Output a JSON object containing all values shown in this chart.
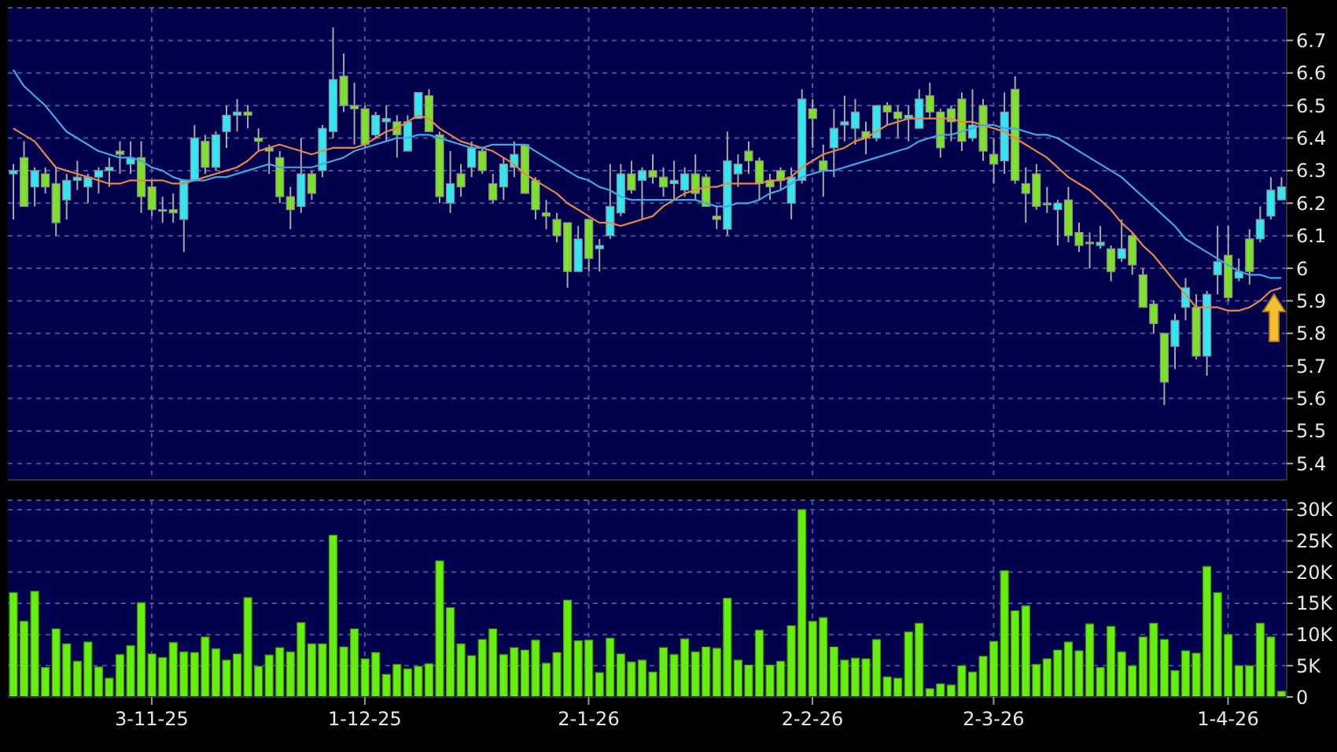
{
  "chart_data": [
    {
      "type": "candlestick",
      "categories": [
        null,
        null,
        null,
        null,
        null,
        null,
        null,
        null,
        null,
        null,
        null,
        null,
        null,
        null,
        null,
        null,
        null,
        null,
        null,
        null,
        null,
        null,
        null,
        null,
        null,
        null,
        null,
        null,
        null,
        null,
        null,
        null,
        null,
        null,
        null,
        null,
        null,
        null,
        null,
        null,
        null,
        null,
        null,
        null,
        null,
        null,
        null,
        null,
        null,
        null,
        null,
        null,
        null,
        null,
        null,
        null,
        null,
        null,
        null,
        null,
        null,
        null,
        null,
        null,
        null,
        null,
        null,
        null,
        null,
        null,
        null,
        null,
        null,
        null,
        null,
        null,
        null,
        null,
        null,
        null,
        null,
        null,
        null,
        null,
        null,
        null,
        null,
        null,
        null,
        null,
        null,
        null,
        null,
        null,
        null,
        null,
        null,
        null,
        null,
        null,
        null,
        null,
        null,
        null,
        null,
        null,
        null,
        null,
        null,
        null,
        null,
        null,
        null,
        null,
        null,
        null,
        null,
        null,
        null,
        null
      ],
      "ohlc": [
        [
          6.29,
          6.32,
          6.15,
          6.3
        ],
        [
          6.34,
          6.39,
          6.19,
          6.19
        ],
        [
          6.25,
          6.31,
          6.19,
          6.3
        ],
        [
          6.29,
          6.31,
          6.23,
          6.25
        ],
        [
          6.26,
          6.31,
          6.1,
          6.14
        ],
        [
          6.21,
          6.29,
          6.15,
          6.27
        ],
        [
          6.27,
          6.33,
          6.24,
          6.28
        ],
        [
          6.25,
          6.29,
          6.2,
          6.28
        ],
        [
          6.28,
          6.31,
          6.23,
          6.3
        ],
        [
          6.3,
          6.34,
          6.25,
          6.31
        ],
        [
          6.36,
          6.39,
          6.29,
          6.35
        ],
        [
          6.32,
          6.39,
          6.29,
          6.34
        ],
        [
          6.34,
          6.39,
          6.17,
          6.22
        ],
        [
          6.25,
          6.27,
          6.16,
          6.18
        ],
        [
          6.18,
          6.22,
          6.14,
          6.18
        ],
        [
          6.18,
          6.23,
          6.14,
          6.17
        ],
        [
          6.15,
          6.27,
          6.05,
          6.27
        ],
        [
          6.27,
          6.44,
          6.27,
          6.4
        ],
        [
          6.39,
          6.41,
          6.29,
          6.31
        ],
        [
          6.31,
          6.42,
          6.3,
          6.41
        ],
        [
          6.42,
          6.5,
          6.37,
          6.47
        ],
        [
          6.47,
          6.52,
          6.42,
          6.48
        ],
        [
          6.48,
          6.5,
          6.43,
          6.47
        ],
        [
          6.4,
          6.43,
          6.36,
          6.39
        ],
        [
          6.37,
          6.38,
          6.29,
          6.36
        ],
        [
          6.34,
          6.36,
          6.2,
          6.22
        ],
        [
          6.22,
          6.25,
          6.12,
          6.18
        ],
        [
          6.19,
          6.4,
          6.17,
          6.29
        ],
        [
          6.29,
          6.3,
          6.21,
          6.23
        ],
        [
          6.3,
          6.44,
          6.28,
          6.43
        ],
        [
          6.42,
          6.74,
          6.4,
          6.58
        ],
        [
          6.59,
          6.66,
          6.48,
          6.5
        ],
        [
          6.5,
          6.57,
          6.38,
          6.49
        ],
        [
          6.49,
          6.5,
          6.37,
          6.38
        ],
        [
          6.41,
          6.48,
          6.4,
          6.47
        ],
        [
          6.45,
          6.5,
          6.39,
          6.46
        ],
        [
          6.45,
          6.47,
          6.34,
          6.41
        ],
        [
          6.36,
          6.47,
          6.36,
          6.45
        ],
        [
          6.46,
          6.54,
          6.46,
          6.54
        ],
        [
          6.53,
          6.55,
          6.42,
          6.42
        ],
        [
          6.41,
          6.42,
          6.2,
          6.22
        ],
        [
          6.2,
          6.36,
          6.17,
          6.26
        ],
        [
          6.29,
          6.32,
          6.22,
          6.25
        ],
        [
          6.31,
          6.39,
          6.28,
          6.37
        ],
        [
          6.36,
          6.37,
          6.29,
          6.3
        ],
        [
          6.26,
          6.29,
          6.2,
          6.21
        ],
        [
          6.25,
          6.34,
          6.21,
          6.32
        ],
        [
          6.31,
          6.39,
          6.28,
          6.35
        ],
        [
          6.38,
          6.38,
          6.23,
          6.23
        ],
        [
          6.27,
          6.28,
          6.15,
          6.18
        ],
        [
          6.17,
          6.21,
          6.12,
          6.16
        ],
        [
          6.15,
          6.17,
          6.08,
          6.1
        ],
        [
          6.14,
          6.14,
          5.94,
          5.99
        ],
        [
          5.99,
          6.13,
          5.99,
          6.09
        ],
        [
          6.15,
          6.15,
          5.99,
          6.03
        ],
        [
          6.06,
          6.09,
          5.99,
          6.07
        ],
        [
          6.1,
          6.32,
          6.09,
          6.19
        ],
        [
          6.17,
          6.32,
          6.16,
          6.29
        ],
        [
          6.29,
          6.33,
          6.23,
          6.24
        ],
        [
          6.27,
          6.31,
          6.15,
          6.3
        ],
        [
          6.3,
          6.35,
          6.26,
          6.28
        ],
        [
          6.28,
          6.31,
          6.22,
          6.25
        ],
        [
          6.26,
          6.33,
          6.21,
          6.27
        ],
        [
          6.24,
          6.31,
          6.22,
          6.29
        ],
        [
          6.29,
          6.35,
          6.21,
          6.23
        ],
        [
          6.28,
          6.29,
          6.19,
          6.19
        ],
        [
          6.16,
          6.19,
          6.12,
          6.15
        ],
        [
          6.12,
          6.42,
          6.1,
          6.33
        ],
        [
          6.29,
          6.35,
          6.25,
          6.32
        ],
        [
          6.36,
          6.39,
          6.29,
          6.33
        ],
        [
          6.33,
          6.34,
          6.21,
          6.26
        ],
        [
          6.27,
          6.29,
          6.21,
          6.25
        ],
        [
          6.3,
          6.31,
          6.24,
          6.27
        ],
        [
          6.2,
          6.31,
          6.15,
          6.28
        ],
        [
          6.27,
          6.55,
          6.26,
          6.52
        ],
        [
          6.49,
          6.52,
          6.37,
          6.46
        ],
        [
          6.33,
          6.38,
          6.22,
          6.3
        ],
        [
          6.37,
          6.49,
          6.28,
          6.43
        ],
        [
          6.44,
          6.53,
          6.39,
          6.45
        ],
        [
          6.43,
          6.52,
          6.38,
          6.48
        ],
        [
          6.42,
          6.45,
          6.35,
          6.4
        ],
        [
          6.4,
          6.5,
          6.39,
          6.5
        ],
        [
          6.5,
          6.51,
          6.44,
          6.48
        ],
        [
          6.48,
          6.5,
          6.4,
          6.46
        ],
        [
          6.46,
          6.5,
          6.39,
          6.47
        ],
        [
          6.43,
          6.55,
          6.43,
          6.52
        ],
        [
          6.53,
          6.57,
          6.46,
          6.48
        ],
        [
          6.48,
          6.49,
          6.34,
          6.37
        ],
        [
          6.49,
          6.5,
          6.39,
          6.45
        ],
        [
          6.52,
          6.54,
          6.36,
          6.39
        ],
        [
          6.4,
          6.55,
          6.39,
          6.44
        ],
        [
          6.5,
          6.52,
          6.33,
          6.36
        ],
        [
          6.35,
          6.4,
          6.26,
          6.32
        ],
        [
          6.33,
          6.54,
          6.29,
          6.48
        ],
        [
          6.55,
          6.59,
          6.26,
          6.27
        ],
        [
          6.26,
          6.31,
          6.14,
          6.23
        ],
        [
          6.29,
          6.32,
          6.18,
          6.19
        ],
        [
          6.2,
          6.25,
          6.17,
          6.2
        ],
        [
          6.18,
          6.21,
          6.07,
          6.2
        ],
        [
          6.21,
          6.25,
          6.08,
          6.1
        ],
        [
          6.11,
          6.14,
          6.05,
          6.07
        ],
        [
          6.08,
          6.11,
          6.0,
          6.08
        ],
        [
          6.07,
          6.13,
          6.06,
          6.08
        ],
        [
          6.06,
          6.07,
          5.96,
          5.99
        ],
        [
          6.03,
          6.15,
          6.02,
          6.06
        ],
        [
          6.1,
          6.11,
          5.98,
          6.01
        ],
        [
          5.98,
          6.0,
          5.88,
          5.88
        ],
        [
          5.89,
          5.9,
          5.8,
          5.83
        ],
        [
          5.8,
          5.8,
          5.58,
          5.65
        ],
        [
          5.76,
          5.86,
          5.69,
          5.84
        ],
        [
          5.88,
          5.97,
          5.84,
          5.94
        ],
        [
          5.88,
          5.92,
          5.72,
          5.73
        ],
        [
          5.73,
          5.93,
          5.67,
          5.92
        ],
        [
          5.98,
          6.13,
          5.92,
          6.02
        ],
        [
          6.04,
          6.13,
          5.9,
          5.91
        ],
        [
          5.97,
          6.03,
          5.96,
          5.99
        ],
        [
          6.09,
          6.12,
          5.95,
          5.99
        ],
        [
          6.09,
          6.19,
          6.08,
          6.15
        ],
        [
          6.16,
          6.28,
          6.15,
          6.24
        ],
        [
          6.21,
          6.28,
          6.21,
          6.25
        ]
      ],
      "colors": [
        "#33e6f2",
        "#7ee02a",
        "#33e6f2",
        "#7ee02a",
        "#7ee02a",
        "#33e6f2",
        "#33e6f2",
        "#33e6f2",
        "#33e6f2",
        "#33e6f2",
        "#7ee02a",
        "#33e6f2",
        "#7ee02a",
        "#7ee02a",
        "#7ee02a",
        "#7ee02a",
        "#33e6f2",
        "#33e6f2",
        "#7ee02a",
        "#33e6f2",
        "#33e6f2",
        "#33e6f2",
        "#7ee02a",
        "#7ee02a",
        "#7ee02a",
        "#7ee02a",
        "#7ee02a",
        "#33e6f2",
        "#7ee02a",
        "#33e6f2",
        "#33e6f2",
        "#7ee02a",
        "#7ee02a",
        "#7ee02a",
        "#33e6f2",
        "#33e6f2",
        "#7ee02a",
        "#33e6f2",
        "#33e6f2",
        "#7ee02a",
        "#7ee02a",
        "#33e6f2",
        "#7ee02a",
        "#33e6f2",
        "#7ee02a",
        "#7ee02a",
        "#33e6f2",
        "#33e6f2",
        "#7ee02a",
        "#7ee02a",
        "#7ee02a",
        "#7ee02a",
        "#7ee02a",
        "#33e6f2",
        "#7ee02a",
        "#33e6f2",
        "#33e6f2",
        "#33e6f2",
        "#7ee02a",
        "#33e6f2",
        "#7ee02a",
        "#7ee02a",
        "#33e6f2",
        "#33e6f2",
        "#7ee02a",
        "#7ee02a",
        "#7ee02a",
        "#33e6f2",
        "#33e6f2",
        "#7ee02a",
        "#7ee02a",
        "#7ee02a",
        "#7ee02a",
        "#33e6f2",
        "#33e6f2",
        "#7ee02a",
        "#7ee02a",
        "#33e6f2",
        "#33e6f2",
        "#33e6f2",
        "#7ee02a",
        "#33e6f2",
        "#7ee02a",
        "#7ee02a",
        "#33e6f2",
        "#33e6f2",
        "#7ee02a",
        "#7ee02a",
        "#7ee02a",
        "#7ee02a",
        "#33e6f2",
        "#7ee02a",
        "#7ee02a",
        "#33e6f2",
        "#7ee02a",
        "#7ee02a",
        "#7ee02a",
        "#7ee02a",
        "#33e6f2",
        "#7ee02a",
        "#7ee02a",
        "#7ee02a",
        "#33e6f2",
        "#7ee02a",
        "#33e6f2",
        "#7ee02a",
        "#7ee02a",
        "#7ee02a",
        "#7ee02a",
        "#33e6f2",
        "#33e6f2",
        "#7ee02a",
        "#33e6f2",
        "#33e6f2",
        "#7ee02a",
        "#33e6f2",
        "#7ee02a",
        "#33e6f2",
        "#33e6f2",
        "#33e6f2"
      ],
      "series": [
        {
          "type": "line",
          "color": "#e8864a",
          "values": [
            6.43,
            6.41,
            6.39,
            6.35,
            6.31,
            6.3,
            6.29,
            6.28,
            6.27,
            6.26,
            6.26,
            6.27,
            6.27,
            6.27,
            6.27,
            6.26,
            6.26,
            6.27,
            6.28,
            6.29,
            6.3,
            6.31,
            6.33,
            6.36,
            6.37,
            6.38,
            6.37,
            6.36,
            6.35,
            6.36,
            6.37,
            6.37,
            6.37,
            6.38,
            6.4,
            6.42,
            6.43,
            6.45,
            6.47,
            6.46,
            6.43,
            6.41,
            6.39,
            6.38,
            6.37,
            6.36,
            6.34,
            6.32,
            6.29,
            6.27,
            6.25,
            6.23,
            6.2,
            6.18,
            6.16,
            6.14,
            6.14,
            6.13,
            6.14,
            6.15,
            6.16,
            6.19,
            6.21,
            6.23,
            6.24,
            6.25,
            6.25,
            6.26,
            6.26,
            6.26,
            6.26,
            6.27,
            6.27,
            6.28,
            6.31,
            6.33,
            6.35,
            6.36,
            6.37,
            6.39,
            6.4,
            6.42,
            6.44,
            6.45,
            6.46,
            6.46,
            6.46,
            6.46,
            6.46,
            6.45,
            6.45,
            6.44,
            6.43,
            6.42,
            6.4,
            6.38,
            6.36,
            6.34,
            6.31,
            6.28,
            6.26,
            6.24,
            6.21,
            6.18,
            6.14,
            6.11,
            6.07,
            6.04,
            6.0,
            5.96,
            5.92,
            5.88,
            5.88,
            5.88,
            5.87,
            5.87,
            5.88,
            5.9,
            5.93,
            5.94
          ]
        },
        {
          "type": "line",
          "color": "#3fa9e6",
          "values": [
            6.61,
            6.56,
            6.53,
            6.5,
            6.46,
            6.42,
            6.4,
            6.38,
            6.36,
            6.35,
            6.34,
            6.34,
            6.33,
            6.31,
            6.3,
            6.28,
            6.27,
            6.27,
            6.27,
            6.28,
            6.28,
            6.29,
            6.3,
            6.31,
            6.32,
            6.31,
            6.31,
            6.31,
            6.31,
            6.32,
            6.33,
            6.34,
            6.36,
            6.37,
            6.38,
            6.39,
            6.4,
            6.4,
            6.41,
            6.41,
            6.4,
            6.39,
            6.38,
            6.37,
            6.37,
            6.38,
            6.38,
            6.38,
            6.38,
            6.36,
            6.34,
            6.32,
            6.3,
            6.28,
            6.27,
            6.25,
            6.24,
            6.22,
            6.21,
            6.21,
            6.21,
            6.21,
            6.21,
            6.21,
            6.21,
            6.2,
            6.19,
            6.19,
            6.2,
            6.2,
            6.21,
            6.23,
            6.24,
            6.26,
            6.28,
            6.29,
            6.3,
            6.3,
            6.31,
            6.32,
            6.33,
            6.34,
            6.35,
            6.36,
            6.37,
            6.39,
            6.4,
            6.41,
            6.41,
            6.42,
            6.43,
            6.44,
            6.44,
            6.43,
            6.43,
            6.42,
            6.41,
            6.41,
            6.4,
            6.38,
            6.36,
            6.34,
            6.32,
            6.3,
            6.28,
            6.25,
            6.22,
            6.19,
            6.16,
            6.13,
            6.09,
            6.07,
            6.05,
            6.03,
            6.01,
            5.99,
            5.98,
            5.98,
            5.97,
            5.97
          ]
        }
      ],
      "ylim": [
        5.35,
        6.8
      ],
      "yticks": [
        5.4,
        5.5,
        5.6,
        5.7,
        5.8,
        5.9,
        6,
        6.1,
        6.2,
        6.3,
        6.4,
        6.5,
        6.6,
        6.7
      ],
      "grid": true,
      "tick_labels": "y"
    },
    {
      "type": "bar",
      "categories": [
        null,
        null,
        null,
        null,
        null,
        null,
        null,
        null,
        null,
        null,
        null,
        null,
        null,
        "3-11-25",
        null,
        null,
        null,
        null,
        null,
        null,
        null,
        null,
        null,
        null,
        null,
        null,
        null,
        null,
        null,
        null,
        null,
        null,
        null,
        "1-12-25",
        null,
        null,
        null,
        null,
        null,
        null,
        null,
        null,
        null,
        null,
        null,
        null,
        null,
        null,
        null,
        null,
        null,
        null,
        null,
        null,
        "2-1-26",
        null,
        null,
        null,
        null,
        null,
        null,
        null,
        null,
        null,
        null,
        null,
        null,
        null,
        null,
        null,
        null,
        null,
        null,
        null,
        null,
        "2-2-26",
        null,
        null,
        null,
        null,
        null,
        null,
        null,
        null,
        null,
        null,
        null,
        null,
        null,
        null,
        null,
        null,
        "2-3-26",
        null,
        null,
        null,
        null,
        null,
        null,
        null,
        null,
        null,
        null,
        null,
        null,
        null,
        null,
        null,
        null,
        null,
        null,
        null,
        null,
        null,
        "1-4-26",
        null,
        null,
        null,
        null,
        null
      ],
      "values": [
        16700,
        12100,
        16900,
        4700,
        10900,
        8500,
        5700,
        8800,
        4800,
        3000,
        6800,
        8200,
        15100,
        6900,
        6300,
        8700,
        7200,
        7100,
        9600,
        7700,
        5900,
        6900,
        15900,
        4900,
        6700,
        7900,
        7200,
        11900,
        8500,
        8500,
        25900,
        8000,
        10900,
        6100,
        7100,
        3600,
        5200,
        4500,
        4900,
        5300,
        21800,
        14300,
        8500,
        6600,
        9200,
        10900,
        6800,
        7900,
        7500,
        9100,
        5400,
        7100,
        15500,
        9000,
        9100,
        3900,
        9400,
        6900,
        5600,
        5900,
        4000,
        7900,
        6800,
        9300,
        7200,
        8000,
        7800,
        15800,
        5900,
        5100,
        10700,
        5100,
        5700,
        11400,
        30000,
        12100,
        12700,
        8000,
        5900,
        6200,
        6100,
        9200,
        3200,
        3000,
        10400,
        11800,
        1300,
        2100,
        1900,
        5000,
        4000,
        6500,
        8900,
        20200,
        13800,
        14600,
        5200,
        6100,
        7500,
        8800,
        7400,
        11700,
        4700,
        11300,
        7200,
        5000,
        9600,
        11800,
        9200,
        4200,
        7400,
        7000,
        20900,
        16700,
        10000,
        5000,
        5000,
        11800,
        9600,
        900
      ],
      "color": "#66ee11",
      "ylim": [
        0,
        31500
      ],
      "yticks": [
        0,
        {
          "value": 5000,
          "label": "5K"
        },
        {
          "value": 10000,
          "label": "10K"
        },
        {
          "value": 15000,
          "label": "15K"
        },
        {
          "value": 20000,
          "label": "20K"
        },
        {
          "value": 25000,
          "label": "25K"
        },
        {
          "value": 30000,
          "label": "30K"
        }
      ],
      "grid": true
    }
  ]
}
